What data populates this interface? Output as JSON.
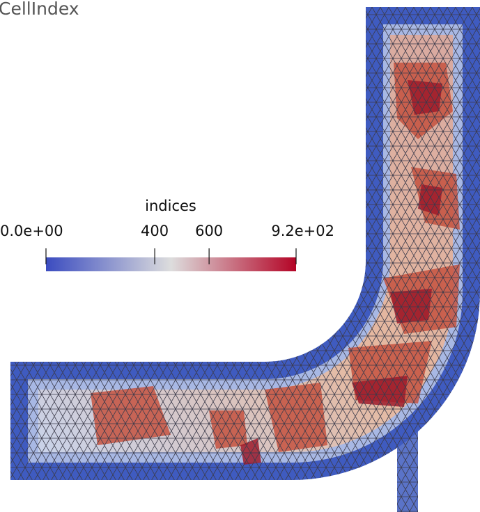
{
  "title": "CellIndex",
  "colorbar": {
    "title": "indices",
    "range": [
      0,
      920
    ],
    "ticks": [
      {
        "value": 0,
        "label": "0.0e+00"
      },
      400,
      600,
      {
        "value": 920,
        "label": "9.2e+02"
      }
    ]
  }
}
